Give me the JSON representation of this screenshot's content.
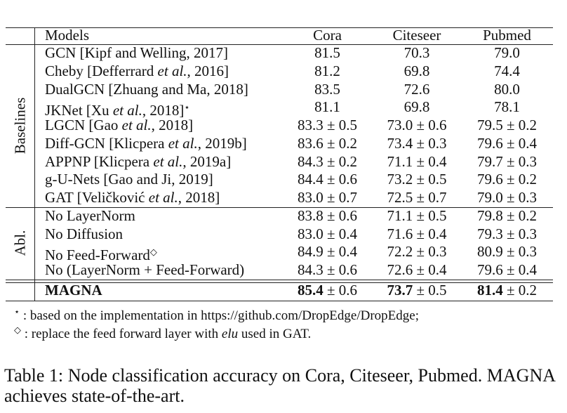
{
  "table": {
    "header": [
      "Models",
      "Cora",
      "Citeseer",
      "Pubmed"
    ],
    "groups": [
      {
        "label": "Baselines",
        "rows": [
          [
            "GCN [Kipf and Welling, 2017]",
            "81.5",
            "70.3",
            "79.0"
          ],
          [
            "Cheby [Defferrard et al., 2016]",
            "81.2",
            "69.8",
            "74.4"
          ],
          [
            "DualGCN [Zhuang and Ma, 2018]",
            "83.5",
            "72.6",
            "80.0"
          ],
          [
            "JKNet [Xu et al., 2018]⋆",
            "81.1",
            "69.8",
            "78.1"
          ],
          [
            "LGCN [Gao et al., 2018]",
            "83.3 ± 0.5",
            "73.0 ± 0.6",
            "79.5 ± 0.2"
          ],
          [
            "Diff-GCN [Klicpera et al., 2019b]",
            "83.6 ± 0.2",
            "73.4 ± 0.3",
            "79.6 ± 0.4"
          ],
          [
            "APPNP [Klicpera et al., 2019a]",
            "84.3 ± 0.2",
            "71.1 ± 0.4",
            "79.7 ± 0.3"
          ],
          [
            "g-U-Nets [Gao and Ji, 2019]",
            "84.4 ± 0.6",
            "73.2 ± 0.5",
            "79.6 ± 0.2"
          ],
          [
            "GAT [Veličković et al., 2018]",
            "83.0 ± 0.7",
            "72.5 ± 0.7",
            "79.0 ± 0.3"
          ]
        ]
      },
      {
        "label": "Abl.",
        "rows": [
          [
            "No LayerNorm",
            "83.8 ± 0.6",
            "71.1 ± 0.5",
            "79.8 ± 0.2"
          ],
          [
            "No Diffusion",
            "83.0 ± 0.4",
            "71.6 ± 0.4",
            "79.3 ± 0.3"
          ],
          [
            "No Feed-Forward◇",
            "84.9 ± 0.4",
            "72.2 ± 0.3",
            "80.9 ± 0.3"
          ],
          [
            "No (LayerNorm + Feed-Forward)",
            "84.3 ± 0.6",
            "72.6 ± 0.4",
            "79.6 ± 0.4"
          ]
        ]
      }
    ],
    "final_row": [
      "MAGNA",
      "85.4 ± 0.6",
      "73.7 ± 0.5",
      "81.4 ± 0.2"
    ]
  },
  "footnotes": [
    "⋆ : based on the implementation in https://github.com/DropEdge/DropEdge;",
    "◇ : replace the feed forward layer with elu used in GAT."
  ],
  "caption": "Table 1: Node classification accuracy on Cora, Citeseer, Pubmed. MAGNA achieves state-of-the-art."
}
